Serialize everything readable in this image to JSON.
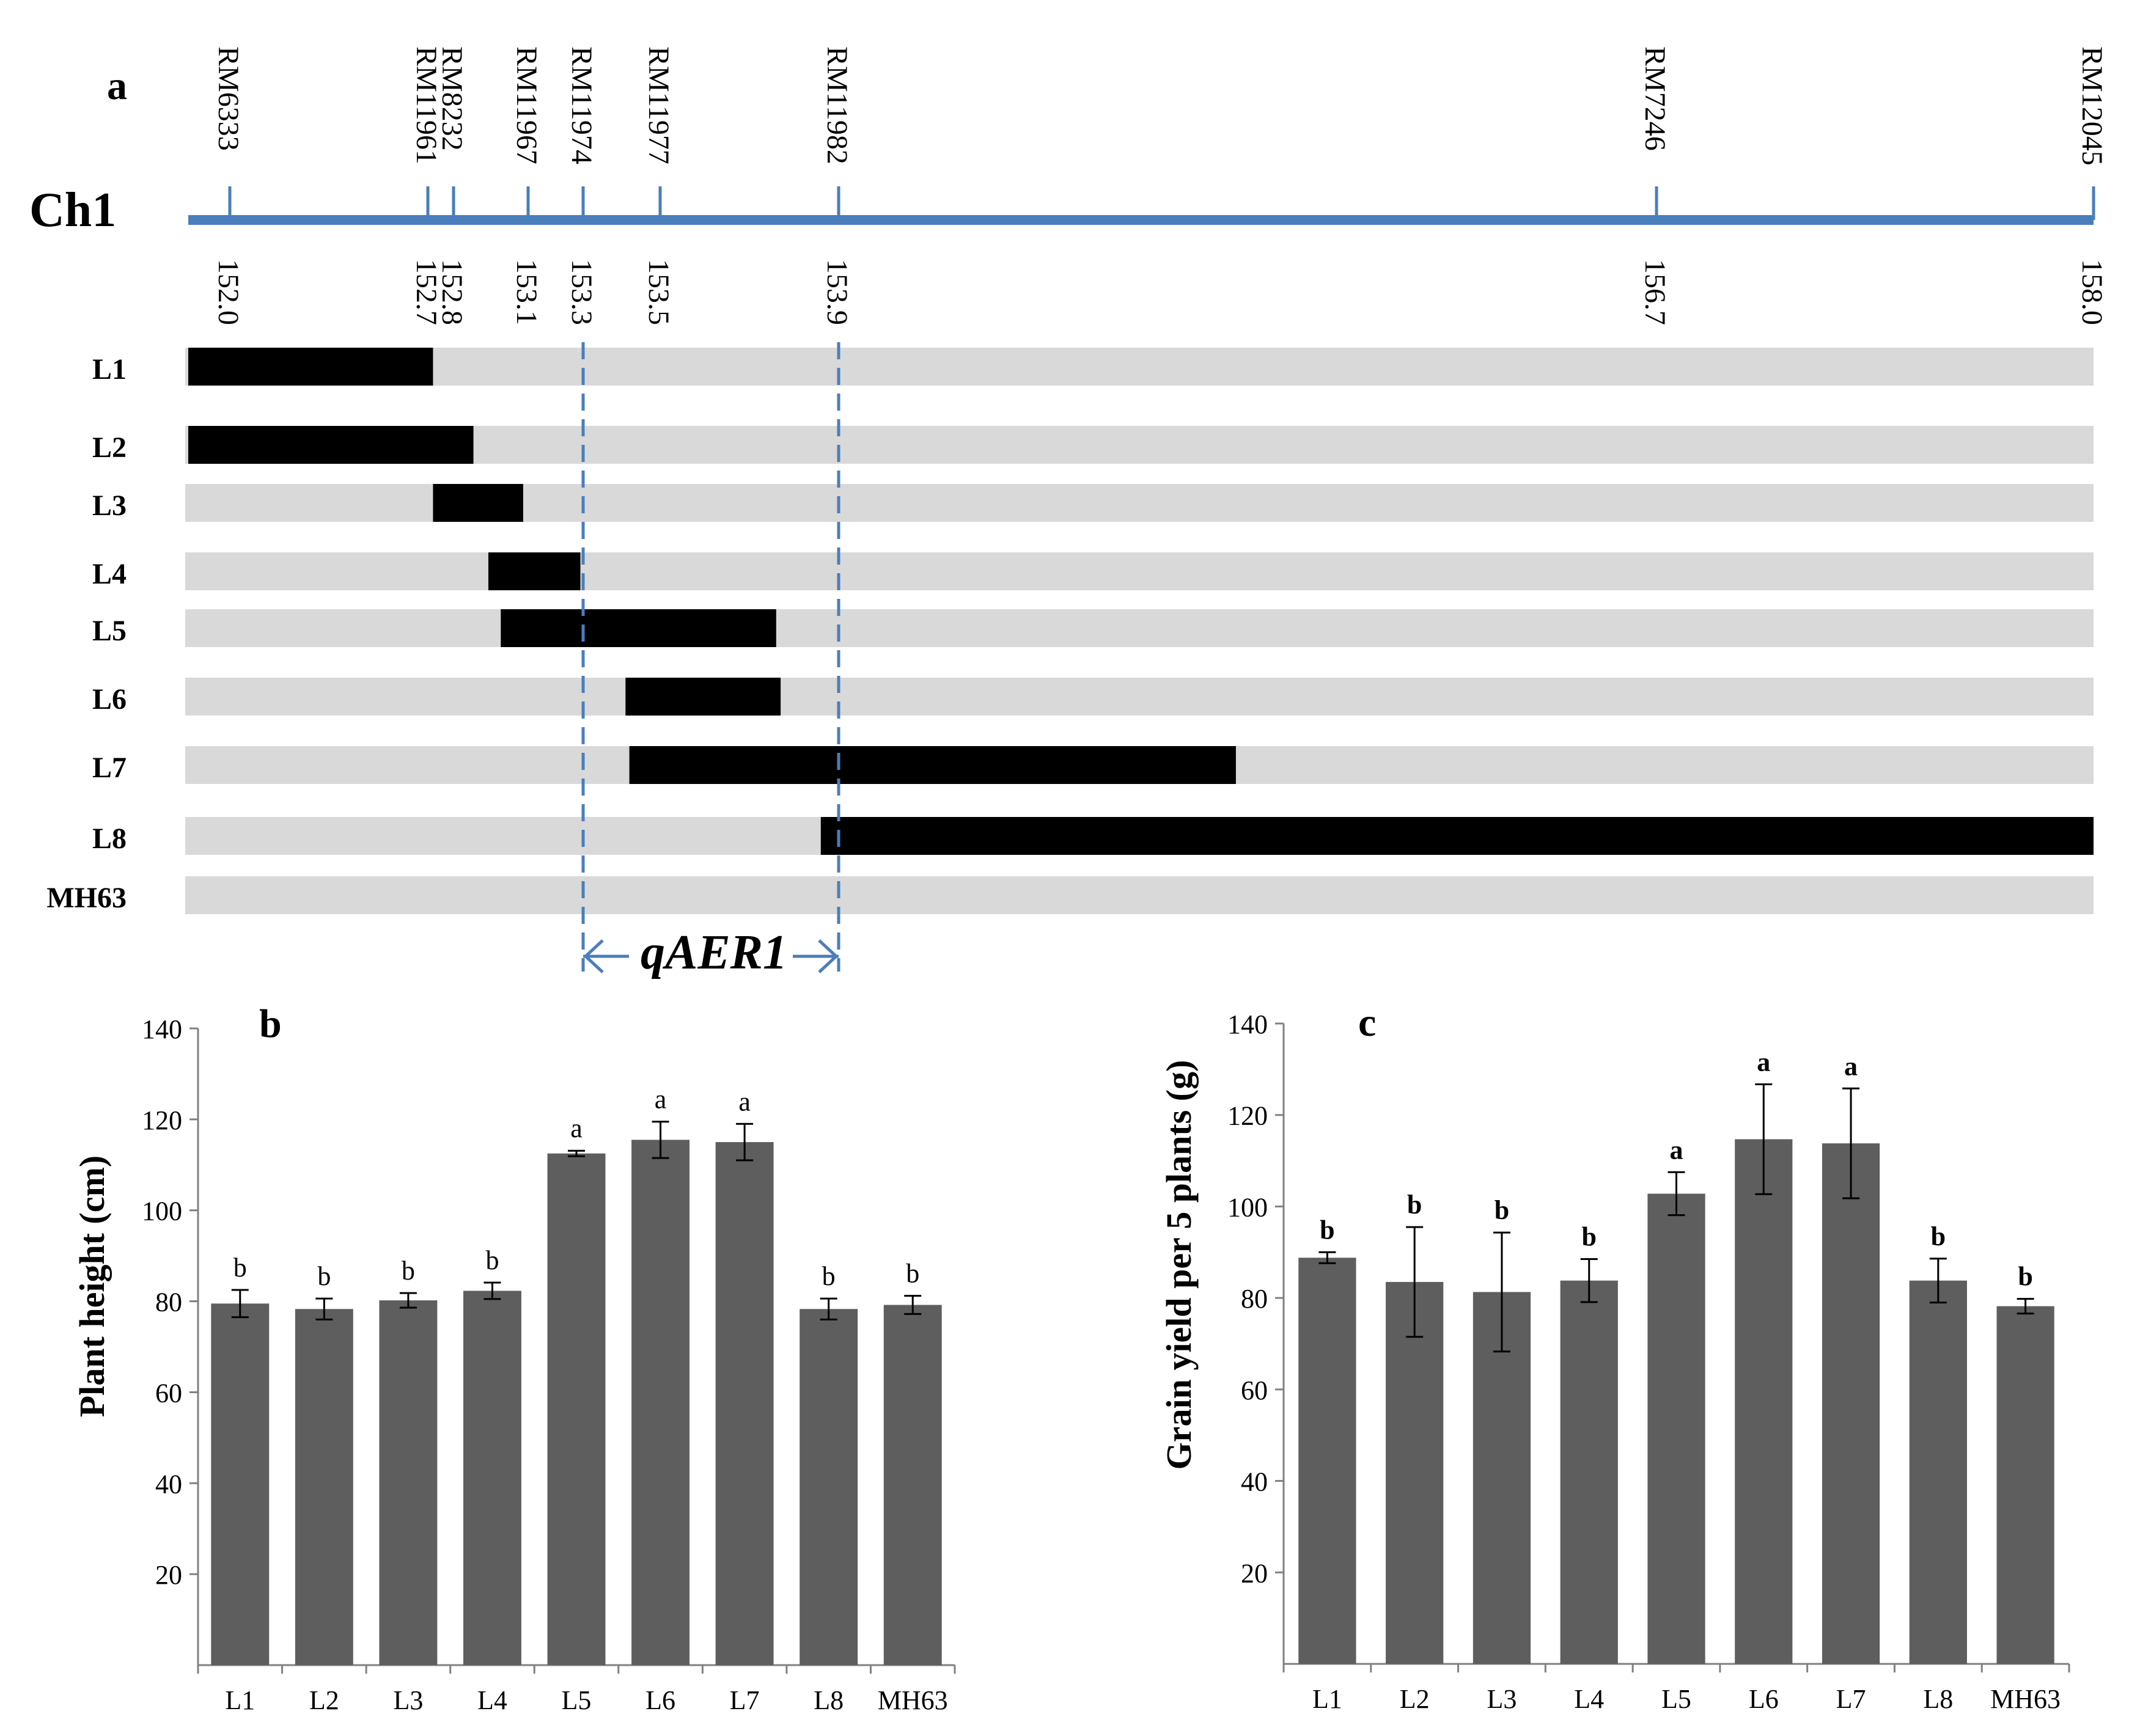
{
  "panel_a": {
    "label": "a",
    "chromosome": "Ch1",
    "colors": {
      "axis": "#4a7ebb",
      "segment": "#000000",
      "background": "#d9d9d9",
      "qtl": "#4a7ebb"
    },
    "markers": [
      {
        "name": "RM6333",
        "pos": "152.0"
      },
      {
        "name": "RM11961",
        "pos": "152.7"
      },
      {
        "name": "RM8232",
        "pos": "152.8"
      },
      {
        "name": "RM11967",
        "pos": "153.1"
      },
      {
        "name": "RM11974",
        "pos": "153.3"
      },
      {
        "name": "RM11977",
        "pos": "153.5"
      },
      {
        "name": "RM11982",
        "pos": "153.9"
      },
      {
        "name": "RM7246",
        "pos": "156.7"
      },
      {
        "name": "RM12045",
        "pos": "158.0"
      }
    ],
    "lines": [
      {
        "name": "L1",
        "start": 151.9,
        "end": 152.72
      },
      {
        "name": "L2",
        "start": 151.9,
        "end": 152.88
      },
      {
        "name": "L3",
        "start": 152.72,
        "end": 153.08
      },
      {
        "name": "L4",
        "start": 152.94,
        "end": 153.29
      },
      {
        "name": "L5",
        "start": 152.99,
        "end": 153.76
      },
      {
        "name": "L6",
        "start": 153.41,
        "end": 153.77
      },
      {
        "name": "L7",
        "start": 153.42,
        "end": 155.26
      },
      {
        "name": "L8",
        "start": 153.86,
        "end": 158.0
      },
      {
        "name": "MH63",
        "start": null,
        "end": null
      }
    ],
    "qtl": {
      "label": "qAER1",
      "start": 153.3,
      "end": 153.9
    }
  },
  "chart_data": [
    {
      "panel": "b",
      "type": "bar",
      "title": "b",
      "xlabel": "",
      "ylabel": "Plant height (cm)",
      "ylim": [
        0,
        140
      ],
      "yticks": [
        "20",
        "40",
        "60",
        "80",
        "100",
        "120",
        "140"
      ],
      "categories": [
        "L1",
        "L2",
        "L3",
        "L4",
        "L5",
        "L6",
        "L7",
        "L8",
        "MH63"
      ],
      "values": [
        79.5,
        78.3,
        80.2,
        82.3,
        112.5,
        115.5,
        115.0,
        78.3,
        79.2
      ],
      "errors": [
        3.0,
        2.3,
        1.6,
        1.8,
        0.6,
        4.0,
        4.0,
        2.3,
        2.0
      ],
      "letters": [
        "b",
        "b",
        "b",
        "b",
        "a",
        "a",
        "a",
        "b",
        "b"
      ],
      "bar_color": "#5e5e5e"
    },
    {
      "panel": "c",
      "type": "bar",
      "title": "c",
      "xlabel": "",
      "ylabel": "Grain yield per 5 plants (g)",
      "ylim": [
        0,
        140
      ],
      "yticks": [
        "20",
        "40",
        "60",
        "80",
        "100",
        "120",
        "140"
      ],
      "categories": [
        "L1",
        "L2",
        "L3",
        "L4",
        "L5",
        "L6",
        "L7",
        "L8",
        "MH63"
      ],
      "values": [
        88.8,
        83.5,
        81.3,
        83.8,
        102.8,
        114.7,
        113.8,
        83.8,
        78.2
      ],
      "errors": [
        1.2,
        12.0,
        13.0,
        4.7,
        4.7,
        12.0,
        12.0,
        4.8,
        1.6
      ],
      "letters": [
        "b",
        "b",
        "b",
        "b",
        "a",
        "a",
        "a",
        "b",
        "b"
      ],
      "bar_color": "#5e5e5e"
    }
  ]
}
